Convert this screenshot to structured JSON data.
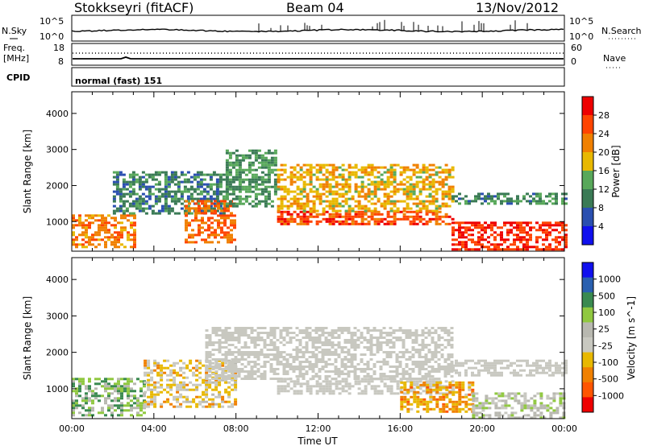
{
  "header": {
    "station": "Stokkseyri (fitACF)",
    "beam": "Beam 04",
    "date": "13/Nov/2012"
  },
  "status_panels": {
    "nsky_label": "N.Sky",
    "nsearch_label": "N.Search",
    "noise_ticks_left": [
      "10^5",
      "10^0"
    ],
    "noise_ticks_right": [
      "10^5",
      "10^0"
    ],
    "freq_label_1": "Freq.",
    "freq_label_2": "[MHz]",
    "freq_ticks": [
      "18",
      "8"
    ],
    "nave_label": "Nave",
    "nave_ticks": [
      "60",
      "0"
    ],
    "cpid_label": "CPID",
    "cpid_value": "normal (fast) 151"
  },
  "colors": {
    "power_scale": [
      "#1010ee",
      "#2a4fb0",
      "#3a7a55",
      "#58a85a",
      "#e8b800",
      "#f08000",
      "#ff4400",
      "#ee0000"
    ],
    "velocity_scale": [
      "#ee0000",
      "#ff5500",
      "#f08000",
      "#e8b800",
      "#c8c8c0",
      "#b8b8b0",
      "#90c840",
      "#3a8a50",
      "#2a60b0",
      "#1010ee"
    ],
    "ground_scatter": "#c8c8c0"
  },
  "chart_data": [
    {
      "type": "heatmap",
      "title": "",
      "xlabel": "",
      "ylabel": "Slant Range [km]",
      "xlim": [
        "00:00",
        "24:00"
      ],
      "ylim": [
        180,
        4600
      ],
      "yticks": [
        "1000",
        "2000",
        "3000",
        "4000"
      ],
      "colorbar": {
        "label": "Power [dB]",
        "ticks": [
          "28",
          "24",
          "20",
          "16",
          "12",
          "8",
          "4"
        ],
        "range": [
          0,
          32
        ]
      },
      "scatter_bands": [
        {
          "start_h": 0.0,
          "end_h": 3.0,
          "range_km": [
            300,
            1200
          ],
          "value": 22
        },
        {
          "start_h": 2.0,
          "end_h": 7.5,
          "range_km": [
            1200,
            2400
          ],
          "value": 10
        },
        {
          "start_h": 5.5,
          "end_h": 8.0,
          "range_km": [
            400,
            1600
          ],
          "value": 24
        },
        {
          "start_h": 7.5,
          "end_h": 10.0,
          "range_km": [
            1400,
            3000
          ],
          "value": 12
        },
        {
          "start_h": 10.0,
          "end_h": 18.5,
          "range_km": [
            900,
            1300
          ],
          "value": 26
        },
        {
          "start_h": 10.0,
          "end_h": 18.5,
          "range_km": [
            1300,
            2600
          ],
          "value": 19
        },
        {
          "start_h": 18.5,
          "end_h": 24.0,
          "range_km": [
            200,
            1000
          ],
          "value": 28
        },
        {
          "start_h": 18.5,
          "end_h": 24.0,
          "range_km": [
            1500,
            1800
          ],
          "value": 11
        }
      ]
    },
    {
      "type": "heatmap",
      "title": "",
      "xlabel": "Time UT",
      "ylabel": "Slant Range [km]",
      "xlim": [
        "00:00",
        "24:00"
      ],
      "ylim": [
        180,
        4600
      ],
      "yticks": [
        "1000",
        "2000",
        "3000",
        "4000"
      ],
      "xticks": [
        "00:00",
        "04:00",
        "08:00",
        "12:00",
        "16:00",
        "20:00",
        "00:00"
      ],
      "colorbar": {
        "label": "Velocity [m s^-1]",
        "ticks": [
          "1000",
          "500",
          "100",
          "25",
          "-25",
          "-100",
          "-500",
          "-1000"
        ],
        "range": [
          -1000,
          1000
        ]
      },
      "scatter_bands": [
        {
          "start_h": 0.0,
          "end_h": 3.5,
          "range_km": [
            300,
            1300
          ],
          "value": 300
        },
        {
          "start_h": 3.5,
          "end_h": 8.0,
          "range_km": [
            500,
            1800
          ],
          "value": -200
        },
        {
          "start_h": 6.5,
          "end_h": 18.5,
          "range_km": [
            1300,
            2700
          ],
          "value": 0
        },
        {
          "start_h": 10.0,
          "end_h": 18.5,
          "range_km": [
            900,
            1300
          ],
          "value": 0
        },
        {
          "start_h": 16.0,
          "end_h": 19.5,
          "range_km": [
            400,
            1200
          ],
          "value": -400
        },
        {
          "start_h": 19.5,
          "end_h": 24.0,
          "range_km": [
            200,
            900
          ],
          "value": 100
        },
        {
          "start_h": 18.5,
          "end_h": 24.0,
          "range_km": [
            1400,
            1800
          ],
          "value": 0
        }
      ]
    }
  ]
}
